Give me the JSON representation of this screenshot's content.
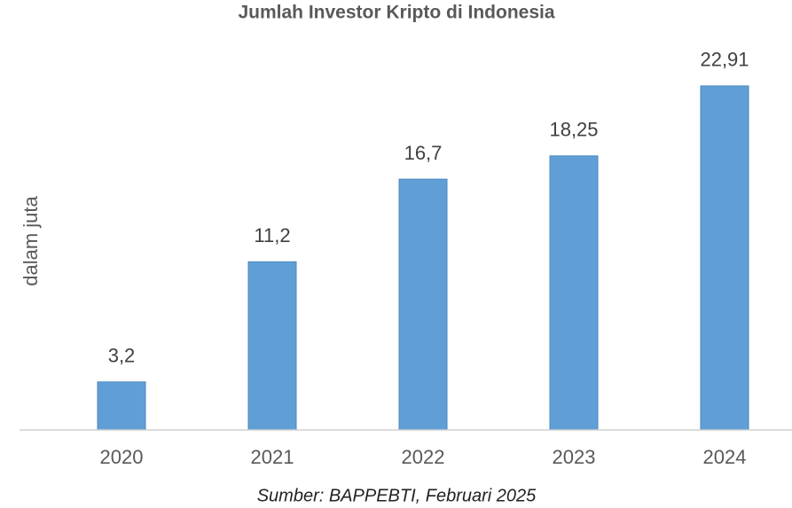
{
  "chart_data": {
    "type": "bar",
    "title": "Jumlah Investor Kripto di Indonesia",
    "y_label": "dalam juta",
    "source": "Sumber: BAPPEBTI, Februari 2025",
    "categories": [
      "2020",
      "2021",
      "2022",
      "2023",
      "2024"
    ],
    "values": [
      3.2,
      11.2,
      16.7,
      18.25,
      22.91
    ],
    "value_labels": [
      "3,2",
      "11,2",
      "16,7",
      "18,25",
      "22,91"
    ],
    "color": "#609fd6",
    "ylim": [
      0,
      25
    ]
  }
}
